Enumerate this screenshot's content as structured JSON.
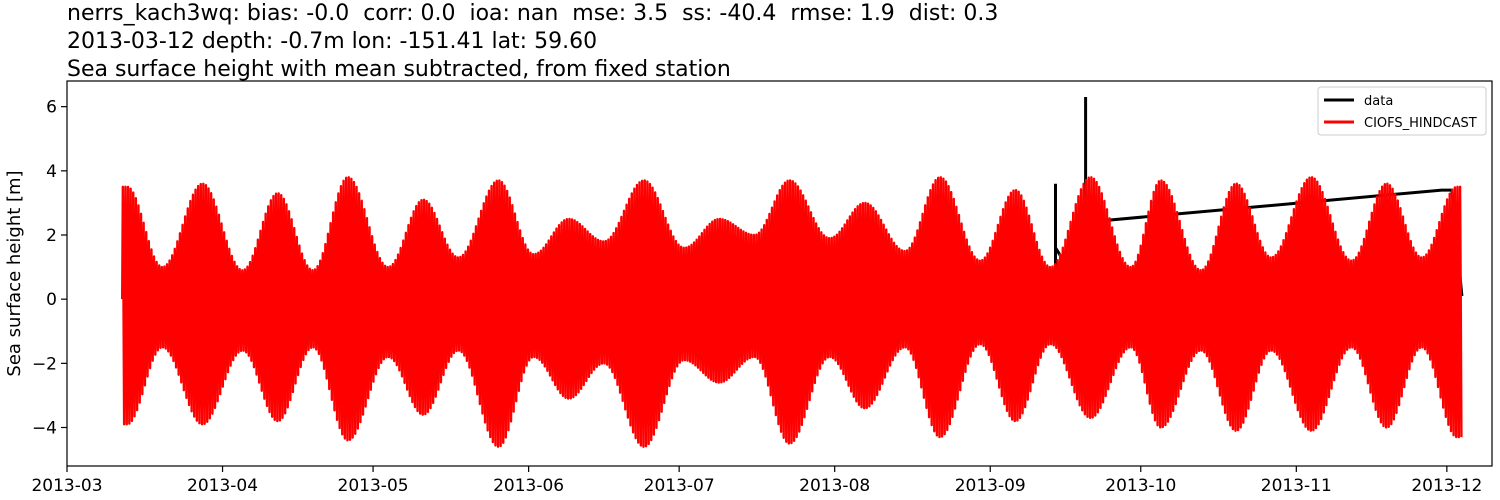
{
  "titles": [
    "nerrs_kach3wq: bias: -0.0  corr: 0.0  ioa: nan  mse: 3.5  ss: -40.4  rmse: 1.9  dist: 0.3",
    "2013-03-12 depth: -0.7m lon: -151.41 lat: 59.60",
    "Sea surface height with mean subtracted, from fixed station"
  ],
  "chart_data": {
    "type": "line",
    "ylabel": "Sea surface height [m]",
    "xlabel": "",
    "xlim": [
      "2013-03-01",
      "2013-12-10"
    ],
    "ylim": [
      -5.2,
      6.8
    ],
    "x_ticks": [
      "2013-03",
      "2013-04",
      "2013-05",
      "2013-06",
      "2013-07",
      "2013-08",
      "2013-09",
      "2013-10",
      "2013-11",
      "2013-12"
    ],
    "y_ticks": [
      -4,
      -2,
      0,
      2,
      4,
      6
    ],
    "grid": false,
    "legend_position": "top-right",
    "series": [
      {
        "name": "data",
        "color": "#000000",
        "points": [
          {
            "x": "2013-03-12",
            "y": 0.1
          },
          {
            "x": "2013-09-14",
            "y": 0.1
          },
          {
            "x": "2013-09-14",
            "y": 3.6
          },
          {
            "x": "2013-09-14",
            "y": 1.6
          },
          {
            "x": "2013-09-20",
            "y": 0.1
          },
          {
            "x": "2013-09-20",
            "y": 6.3
          },
          {
            "x": "2013-09-20",
            "y": 2.4
          },
          {
            "x": "2013-11-30",
            "y": 3.4
          },
          {
            "x": "2013-12-02",
            "y": 3.4
          },
          {
            "x": "2013-12-04",
            "y": 0.1
          }
        ]
      },
      {
        "name": "CIOFS_HINDCAST",
        "color": "#ff0000",
        "description": "semidiurnal tide, spring/neap envelope",
        "x_start": "2013-03-12",
        "x_end": "2013-12-04",
        "envelope": [
          {
            "x": "2013-03-13",
            "max": 3.5,
            "min": -3.9
          },
          {
            "x": "2013-03-20",
            "max": 1.0,
            "min": -1.5
          },
          {
            "x": "2013-03-28",
            "max": 3.6,
            "min": -3.9
          },
          {
            "x": "2013-04-05",
            "max": 0.9,
            "min": -1.6
          },
          {
            "x": "2013-04-12",
            "max": 3.3,
            "min": -3.8
          },
          {
            "x": "2013-04-19",
            "max": 0.9,
            "min": -1.5
          },
          {
            "x": "2013-04-26",
            "max": 3.8,
            "min": -4.4
          },
          {
            "x": "2013-05-04",
            "max": 1.0,
            "min": -1.8
          },
          {
            "x": "2013-05-11",
            "max": 3.1,
            "min": -3.6
          },
          {
            "x": "2013-05-18",
            "max": 1.3,
            "min": -1.6
          },
          {
            "x": "2013-05-26",
            "max": 3.7,
            "min": -4.6
          },
          {
            "x": "2013-06-02",
            "max": 1.4,
            "min": -1.8
          },
          {
            "x": "2013-06-09",
            "max": 2.5,
            "min": -3.1
          },
          {
            "x": "2013-06-16",
            "max": 1.8,
            "min": -2.0
          },
          {
            "x": "2013-06-24",
            "max": 3.7,
            "min": -4.6
          },
          {
            "x": "2013-07-02",
            "max": 1.6,
            "min": -1.9
          },
          {
            "x": "2013-07-09",
            "max": 2.5,
            "min": -2.6
          },
          {
            "x": "2013-07-16",
            "max": 2.0,
            "min": -1.8
          },
          {
            "x": "2013-07-23",
            "max": 3.7,
            "min": -4.5
          },
          {
            "x": "2013-07-31",
            "max": 1.9,
            "min": -1.8
          },
          {
            "x": "2013-08-07",
            "max": 3.0,
            "min": -3.4
          },
          {
            "x": "2013-08-15",
            "max": 1.5,
            "min": -1.5
          },
          {
            "x": "2013-08-22",
            "max": 3.8,
            "min": -4.3
          },
          {
            "x": "2013-08-30",
            "max": 1.2,
            "min": -1.4
          },
          {
            "x": "2013-09-06",
            "max": 3.4,
            "min": -3.8
          },
          {
            "x": "2013-09-13",
            "max": 1.0,
            "min": -1.4
          },
          {
            "x": "2013-09-21",
            "max": 3.8,
            "min": -3.7
          },
          {
            "x": "2013-09-29",
            "max": 1.0,
            "min": -1.5
          },
          {
            "x": "2013-10-05",
            "max": 3.7,
            "min": -4.0
          },
          {
            "x": "2013-10-13",
            "max": 0.9,
            "min": -1.6
          },
          {
            "x": "2013-10-20",
            "max": 3.6,
            "min": -4.1
          },
          {
            "x": "2013-10-27",
            "max": 1.3,
            "min": -1.6
          },
          {
            "x": "2013-11-04",
            "max": 3.8,
            "min": -4.1
          },
          {
            "x": "2013-11-12",
            "max": 1.2,
            "min": -1.5
          },
          {
            "x": "2013-11-19",
            "max": 3.6,
            "min": -4.0
          },
          {
            "x": "2013-11-26",
            "max": 1.3,
            "min": -1.5
          },
          {
            "x": "2013-12-03",
            "max": 3.5,
            "min": -4.3
          }
        ]
      }
    ]
  }
}
